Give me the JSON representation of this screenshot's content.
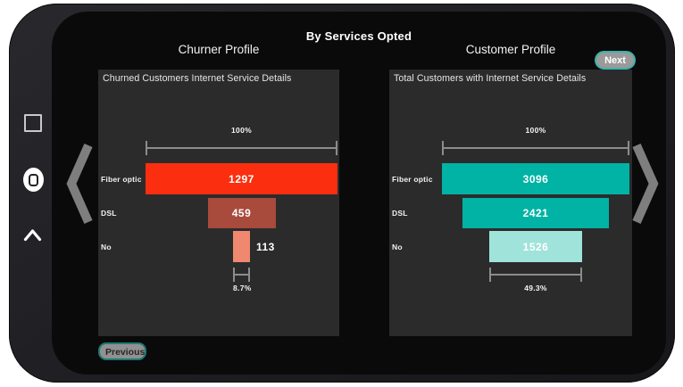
{
  "header": {
    "title": "By Services Opted",
    "left_profile_title": "Churner Profile",
    "right_profile_title": "Customer Profile"
  },
  "buttons": {
    "next": "Next",
    "previous": "Previous"
  },
  "colors": {
    "accent_teal": "#00b3a4",
    "button_border_teal": "#2fa69e",
    "screen_bg": "#0a0a0b",
    "panel_bg": "#2b2b2c"
  },
  "icons": [
    "recents-square-icon",
    "home-button-icon",
    "chevron-up-icon",
    "carousel-left-arrow-icon",
    "carousel-right-arrow-icon"
  ],
  "chart_data": [
    {
      "type": "bar",
      "subtype": "funnel-horizontal",
      "title": "Churned Customers Internet Service Details",
      "categories": [
        "Fiber optic",
        "DSL",
        "No"
      ],
      "values": [
        1297,
        459,
        113
      ],
      "bar_colors": [
        "#fb2f0f",
        "#a84a3c",
        "#f0876f"
      ],
      "value_label_outside": [
        false,
        false,
        true
      ],
      "top_ruler_label": "100%",
      "bottom_bracket_label": "8.7%",
      "legend": "none",
      "grid": false
    },
    {
      "type": "bar",
      "subtype": "funnel-horizontal",
      "title": "Total Customers with Internet Service Details",
      "categories": [
        "Fiber optic",
        "DSL",
        "No"
      ],
      "values": [
        3096,
        2421,
        1526
      ],
      "bar_colors": [
        "#00b3a4",
        "#00b3a4",
        "#9fe3da"
      ],
      "value_label_outside": [
        false,
        false,
        false
      ],
      "top_ruler_label": "100%",
      "bottom_bracket_label": "49.3%",
      "legend": "none",
      "grid": false
    }
  ]
}
